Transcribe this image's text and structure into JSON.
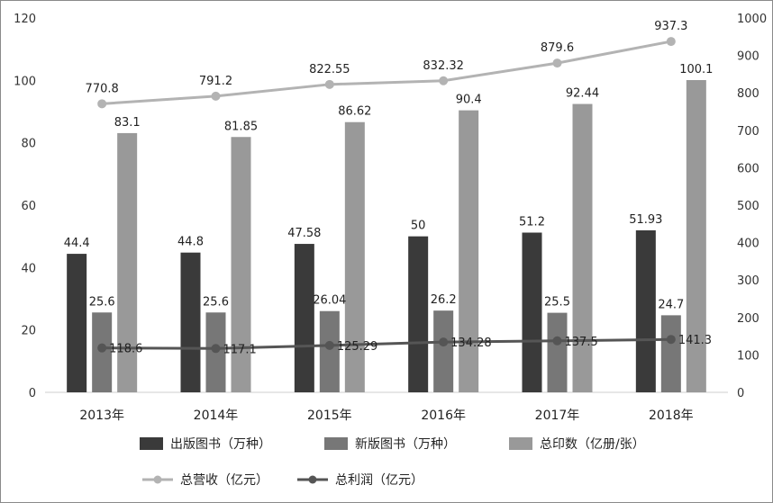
{
  "chart_data": {
    "type": "bar",
    "categories": [
      "2013年",
      "2014年",
      "2015年",
      "2016年",
      "2017年",
      "2018年"
    ],
    "series": [
      {
        "name": "出版图书（万种）",
        "type": "bar",
        "axis": "left",
        "color": "#3a3a3a",
        "values": [
          44.4,
          44.8,
          47.58,
          50,
          51.2,
          51.93
        ],
        "labels": [
          "44.4",
          "44.8",
          "47.58",
          "50",
          "51.2",
          "51.93"
        ]
      },
      {
        "name": "新版图书（万种）",
        "type": "bar",
        "axis": "left",
        "color": "#777777",
        "values": [
          25.6,
          25.6,
          26.04,
          26.2,
          25.5,
          24.7
        ],
        "labels": [
          "25.6",
          "25.6",
          "26.04",
          "26.2",
          "25.5",
          "24.7"
        ]
      },
      {
        "name": "总印数（亿册/张）",
        "type": "bar",
        "axis": "left",
        "color": "#999999",
        "values": [
          83.1,
          81.85,
          86.62,
          90.4,
          92.44,
          100.1
        ],
        "labels": [
          "83.1",
          "81.85",
          "86.62",
          "90.4",
          "92.44",
          "100.1"
        ]
      },
      {
        "name": "总营收（亿元）",
        "type": "line",
        "axis": "right",
        "color": "#b3b3b3",
        "values": [
          770.8,
          791.2,
          822.55,
          832.32,
          879.6,
          937.3
        ],
        "labels": [
          "770.8",
          "791.2",
          "822.55",
          "832.32",
          "879.6",
          "937.3"
        ]
      },
      {
        "name": "总利润（亿元）",
        "type": "line",
        "axis": "right",
        "color": "#555555",
        "values": [
          118.6,
          117.1,
          125.29,
          134.28,
          137.5,
          141.3
        ],
        "labels": [
          "118.6",
          "117.1",
          "125.29",
          "134.28",
          "137.5",
          "141.3"
        ]
      }
    ],
    "y_left": {
      "min": 0,
      "max": 120,
      "ticks": [
        "0",
        "20",
        "40",
        "60",
        "80",
        "100",
        "120"
      ]
    },
    "y_right": {
      "min": 0,
      "max": 1000,
      "ticks": [
        "0",
        "100",
        "200",
        "300",
        "400",
        "500",
        "600",
        "700",
        "800",
        "900",
        "1000"
      ]
    },
    "grid": false,
    "legend": "bottom"
  }
}
